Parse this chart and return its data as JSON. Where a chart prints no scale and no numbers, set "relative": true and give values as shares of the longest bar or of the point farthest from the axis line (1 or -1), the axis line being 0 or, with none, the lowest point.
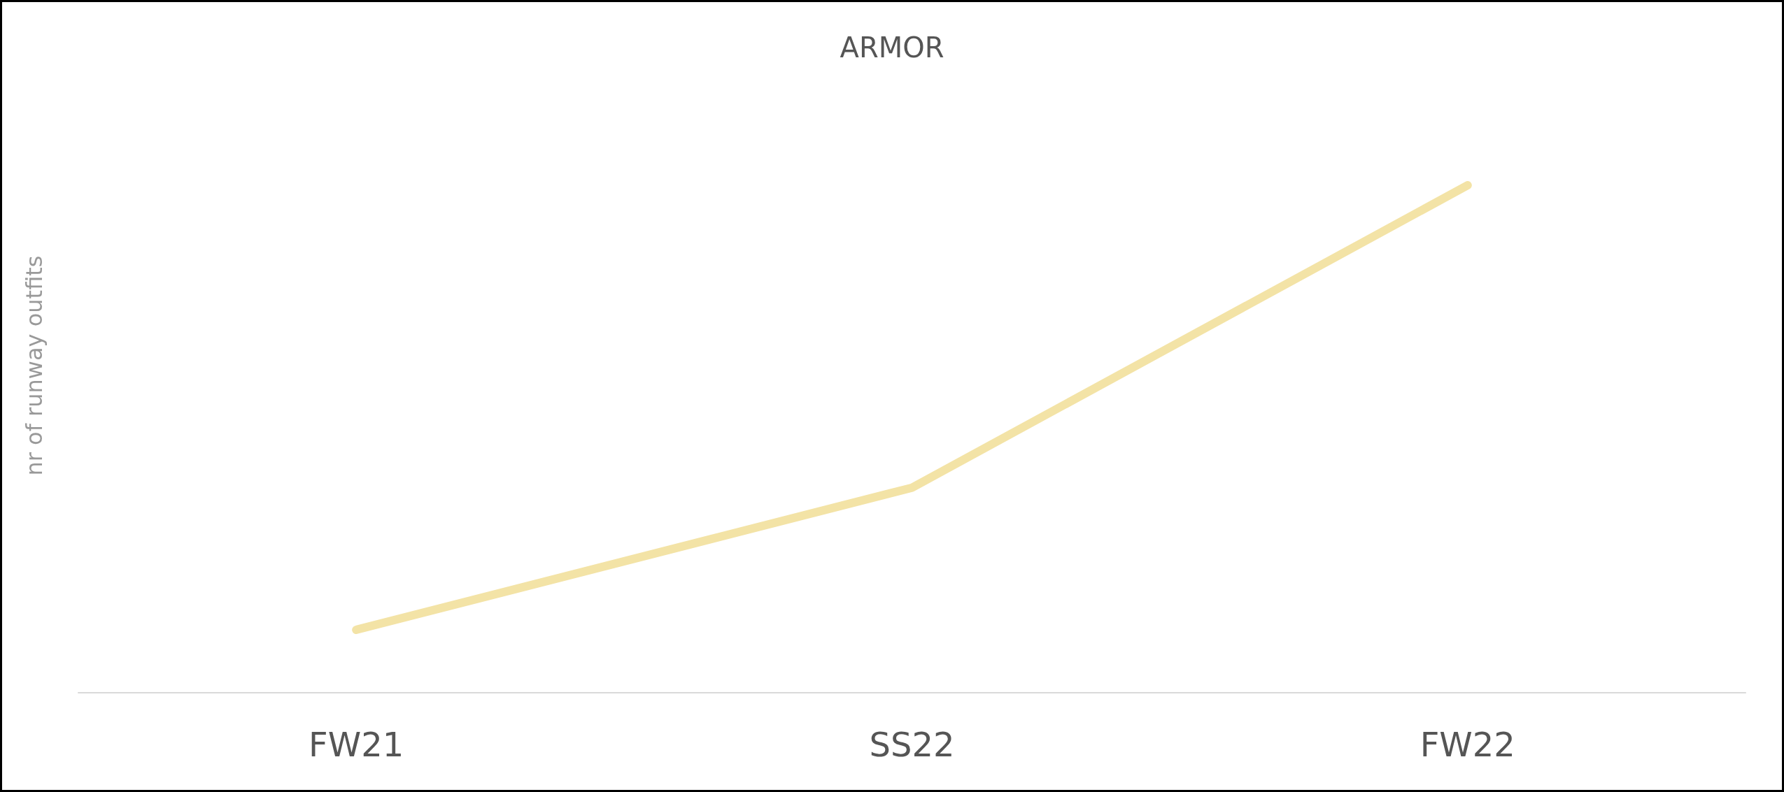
{
  "chart_data": {
    "type": "line",
    "title": "ARMOR",
    "ylabel": "nr of runway outfits",
    "categories": [
      "FW21",
      "SS22",
      "FW22"
    ],
    "series": [
      {
        "color": "#f3e3a6",
        "values": [
          0.124,
          0.404,
          1
        ]
      }
    ],
    "relative": true,
    "line_style": "solid"
  }
}
